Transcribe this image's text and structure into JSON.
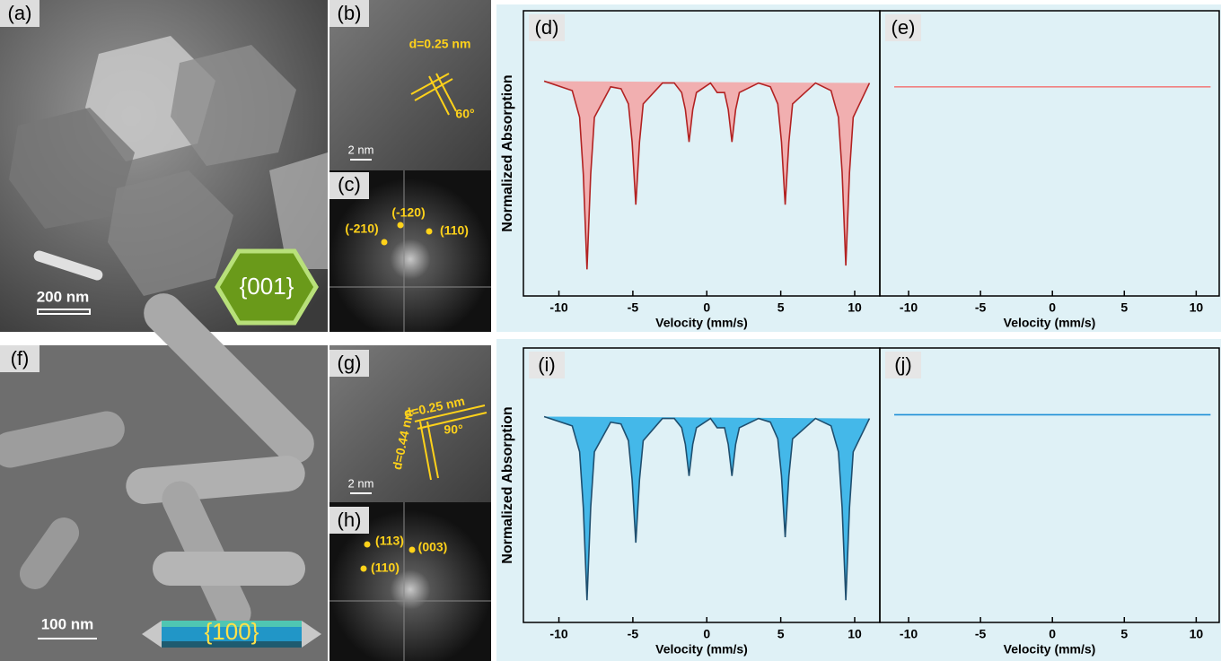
{
  "micrographs": [
    {
      "label": "(a)",
      "scale_bar": "200 nm",
      "facet": "{001}"
    },
    {
      "label": "(b)",
      "spacing": "d=0.25 nm",
      "angle": "60°",
      "scale_bar": "2 nm"
    },
    {
      "label": "(c)",
      "spots": [
        "(-120)",
        "(-210)",
        "(110)"
      ]
    },
    {
      "label": "(f)",
      "scale_bar": "100 nm",
      "facet": "{100}"
    },
    {
      "label": "(g)",
      "spacing": "d=0.25 nm",
      "spacing2": "d=0.44 nm",
      "angle": "90°",
      "scale_bar": "2 nm"
    },
    {
      "label": "(h)",
      "spots": [
        "(113)",
        "(003)",
        "(110)"
      ]
    }
  ],
  "chart_data": [
    {
      "type": "area",
      "title": "(d)",
      "xlabel": "Velocity (mm/s)",
      "ylabel": "Normalized Absorption",
      "color": "#f4a3a3",
      "line_color": "#b22222",
      "x": [
        -11,
        -9.1,
        -8.6,
        -8.35,
        -8.1,
        -7.85,
        -7.6,
        -6.5,
        -5.8,
        -5.3,
        -5.05,
        -4.8,
        -4.55,
        -4.3,
        -3,
        -2.2,
        -1.7,
        -1.45,
        -1.2,
        -0.95,
        -0.7,
        0.25,
        0.7,
        1.2,
        1.45,
        1.7,
        1.95,
        2.2,
        3.5,
        4.3,
        4.8,
        5.05,
        5.3,
        5.55,
        5.8,
        7.35,
        8.4,
        8.9,
        9.15,
        9.4,
        9.65,
        9.9,
        11
      ],
      "values": [
        0.99,
        0.94,
        0.8,
        0.5,
        0.0,
        0.5,
        0.8,
        0.96,
        0.95,
        0.87,
        0.67,
        0.34,
        0.67,
        0.87,
        0.98,
        0.98,
        0.93,
        0.84,
        0.67,
        0.84,
        0.93,
        0.98,
        0.93,
        0.93,
        0.84,
        0.67,
        0.84,
        0.93,
        0.98,
        0.96,
        0.87,
        0.67,
        0.34,
        0.67,
        0.87,
        0.98,
        0.94,
        0.8,
        0.51,
        0.02,
        0.51,
        0.8,
        0.98
      ],
      "xlim": [
        -12.4,
        11.7
      ],
      "ylim": [
        -0.14,
        1.36
      ],
      "xticks": [
        -10,
        -5,
        0,
        5,
        10
      ]
    },
    {
      "type": "area",
      "title": "(e)",
      "xlabel": "Velocity (mm/s)",
      "color": "#f4a3a3",
      "line_color": "#f08080",
      "x": [
        -11,
        11
      ],
      "values": [
        0.96,
        0.96
      ],
      "xlim": [
        -12,
        11.6
      ],
      "ylim": [
        -0.14,
        1.36
      ],
      "xticks": [
        -10,
        -5,
        0,
        5,
        10
      ]
    },
    {
      "type": "area",
      "title": "(i)",
      "xlabel": "Velocity (mm/s)",
      "ylabel": "Normalized Absorption",
      "color": "#29aee6",
      "line_color": "#1f4f6f",
      "x": [
        -11,
        -9.1,
        -8.6,
        -8.35,
        -8.1,
        -7.85,
        -7.6,
        -6.5,
        -5.8,
        -5.3,
        -5.05,
        -4.8,
        -4.55,
        -4.3,
        -3,
        -2.2,
        -1.7,
        -1.45,
        -1.2,
        -0.95,
        -0.7,
        0.25,
        0.7,
        1.2,
        1.45,
        1.7,
        1.95,
        2.2,
        3.5,
        4.3,
        4.8,
        5.05,
        5.3,
        5.55,
        5.8,
        7.35,
        8.4,
        8.9,
        9.15,
        9.4,
        9.65,
        9.9,
        11
      ],
      "values": [
        0.99,
        0.94,
        0.8,
        0.5,
        0.0,
        0.5,
        0.8,
        0.96,
        0.95,
        0.86,
        0.65,
        0.31,
        0.65,
        0.86,
        0.98,
        0.98,
        0.93,
        0.84,
        0.67,
        0.84,
        0.93,
        0.98,
        0.93,
        0.93,
        0.84,
        0.67,
        0.84,
        0.93,
        0.98,
        0.96,
        0.87,
        0.67,
        0.34,
        0.67,
        0.87,
        0.98,
        0.94,
        0.8,
        0.5,
        0.0,
        0.5,
        0.8,
        0.98
      ],
      "xlim": [
        -12.4,
        11.7
      ],
      "ylim": [
        -0.12,
        1.36
      ],
      "xticks": [
        -10,
        -5,
        0,
        5,
        10
      ]
    },
    {
      "type": "area",
      "title": "(j)",
      "xlabel": "Velocity (mm/s)",
      "color": "#29aee6",
      "line_color": "#1e8fd6",
      "x": [
        -11,
        11
      ],
      "values": [
        1,
        1
      ],
      "xlim": [
        -12,
        11.6
      ],
      "ylim": [
        -0.12,
        1.36
      ],
      "xticks": [
        -10,
        -5,
        0,
        5,
        10
      ]
    }
  ]
}
